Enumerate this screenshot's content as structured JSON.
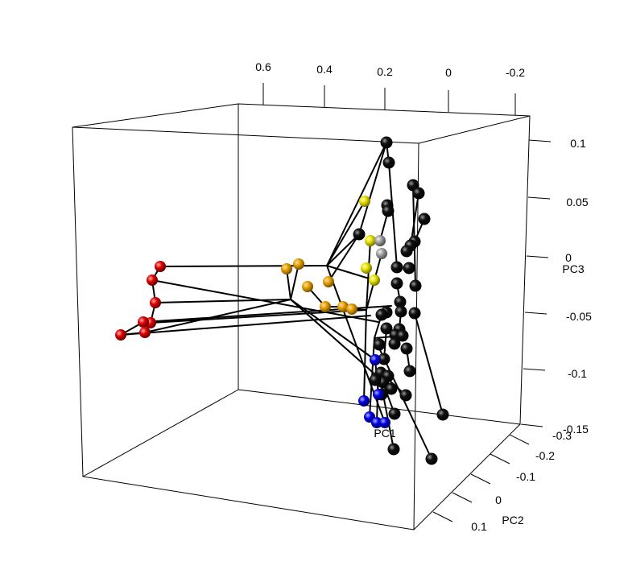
{
  "chart_data": {
    "type": "scatter",
    "subtype": "3d-scatter-with-links",
    "title": "",
    "axes": {
      "pc1": {
        "label": "PC1",
        "ticks": [
          "0.6",
          "0.4",
          "0.2",
          "0",
          "-0.2"
        ],
        "range": [
          -0.25,
          0.7
        ]
      },
      "pc2": {
        "label": "PC2",
        "ticks": [
          "-0.3",
          "-0.2",
          "-0.1",
          "0",
          "0.1"
        ],
        "range": [
          -0.35,
          0.15
        ]
      },
      "pc3": {
        "label": "PC3",
        "ticks": [
          "0.1",
          "0.05",
          "0",
          "-0.05",
          "-0.1",
          "-0.15"
        ],
        "range": [
          -0.15,
          0.12
        ]
      }
    },
    "grid": false,
    "legend": "none",
    "colors": {
      "red": "#e00000",
      "orange": "#e69f00",
      "yellow": "#e6e000",
      "gray": "#a0a0a0",
      "blue": "#0000e0",
      "black": "#111111"
    },
    "series": [
      {
        "color": "red",
        "count": 7
      },
      {
        "color": "orange",
        "count": 7
      },
      {
        "color": "yellow",
        "count": 4
      },
      {
        "color": "gray",
        "count": 2
      },
      {
        "color": "blue",
        "count": 6
      },
      {
        "color": "black",
        "count": 40
      }
    ]
  }
}
